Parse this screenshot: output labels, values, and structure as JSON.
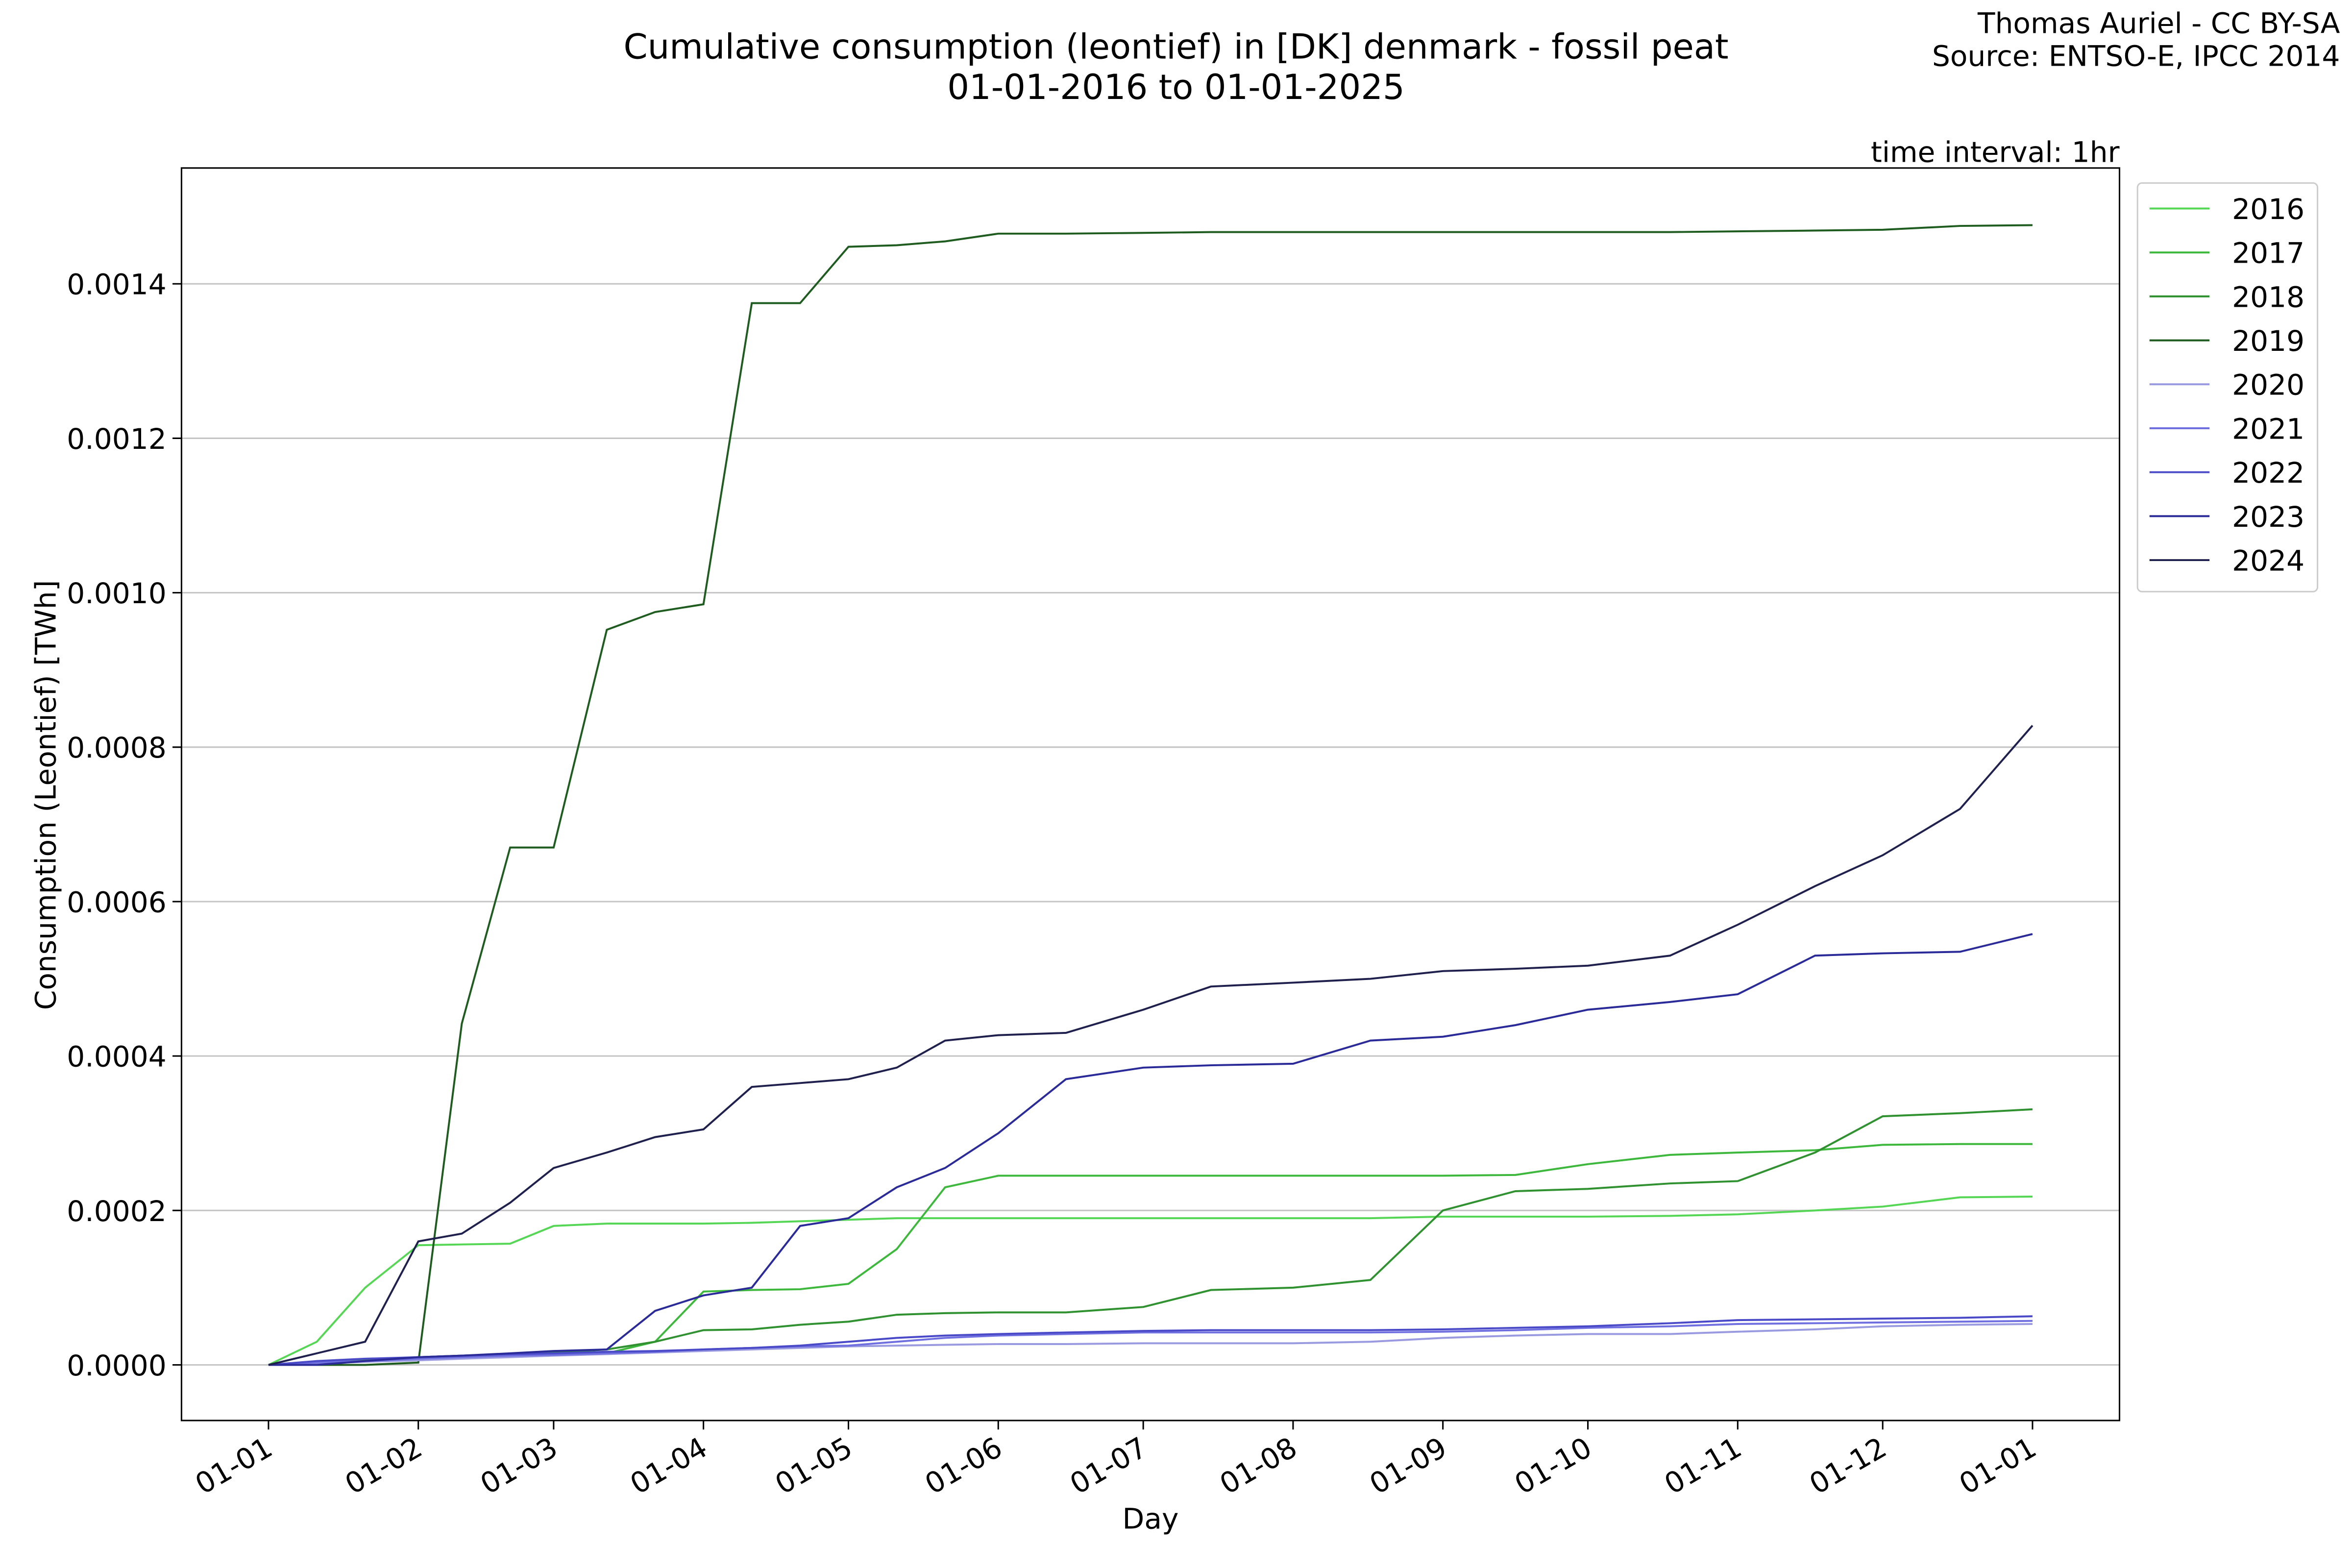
{
  "chart_data": {
    "type": "line",
    "title": "Cumulative consumption (leontief) in [DK] denmark - fossil peat",
    "subtitle": "01-01-2016 to 01-01-2025",
    "credits": [
      "Thomas Auriel - CC BY-SA",
      "Source: ENTSO-E, IPCC 2014"
    ],
    "annotation": "time interval: 1hr",
    "x_label": "Day",
    "y_label": "Consumption (Leontief) [TWh]",
    "grid": "y",
    "legend": "outside right",
    "xlim": [
      -18,
      383
    ],
    "ylim": [
      -7.2e-05,
      0.00155
    ],
    "xticks": [
      {
        "value": 0,
        "label": "01-01"
      },
      {
        "value": 31,
        "label": "01-02"
      },
      {
        "value": 59,
        "label": "01-03"
      },
      {
        "value": 90,
        "label": "01-04"
      },
      {
        "value": 120,
        "label": "01-05"
      },
      {
        "value": 151,
        "label": "01-06"
      },
      {
        "value": 181,
        "label": "01-07"
      },
      {
        "value": 212,
        "label": "01-08"
      },
      {
        "value": 243,
        "label": "01-09"
      },
      {
        "value": 273,
        "label": "01-10"
      },
      {
        "value": 304,
        "label": "01-11"
      },
      {
        "value": 334,
        "label": "01-12"
      },
      {
        "value": 365,
        "label": "01-01"
      }
    ],
    "yticks": [
      {
        "value": 0,
        "label": "0.0000"
      },
      {
        "value": 0.0002,
        "label": "0.0002"
      },
      {
        "value": 0.0004,
        "label": "0.0004"
      },
      {
        "value": 0.0006,
        "label": "0.0006"
      },
      {
        "value": 0.0008,
        "label": "0.0008"
      },
      {
        "value": 0.001,
        "label": "0.0010"
      },
      {
        "value": 0.0012,
        "label": "0.0012"
      },
      {
        "value": 0.0014,
        "label": "0.0014"
      }
    ],
    "x": [
      0,
      10,
      20,
      31,
      40,
      50,
      59,
      70,
      80,
      90,
      100,
      110,
      120,
      130,
      140,
      151,
      165,
      181,
      195,
      212,
      228,
      243,
      258,
      273,
      290,
      304,
      320,
      334,
      350,
      365
    ],
    "series": [
      {
        "name": "2016",
        "color": "#55d655",
        "values": [
          0,
          3e-05,
          0.0001,
          0.000155,
          0.000156,
          0.000157,
          0.00018,
          0.000183,
          0.000183,
          0.000183,
          0.000184,
          0.000186,
          0.000188,
          0.00019,
          0.00019,
          0.00019,
          0.00019,
          0.00019,
          0.00019,
          0.00019,
          0.00019,
          0.000192,
          0.000192,
          0.000192,
          0.000193,
          0.000195,
          0.0002,
          0.000205,
          0.000217,
          0.000218
        ]
      },
      {
        "name": "2017",
        "color": "#3db83d",
        "values": [
          0,
          2e-06,
          5e-06,
          8e-06,
          1e-05,
          1.2e-05,
          1.3e-05,
          1.5e-05,
          3e-05,
          9.5e-05,
          9.7e-05,
          9.8e-05,
          0.000105,
          0.00015,
          0.00023,
          0.000245,
          0.000245,
          0.000245,
          0.000245,
          0.000245,
          0.000245,
          0.000245,
          0.000246,
          0.00026,
          0.000272,
          0.000275,
          0.000278,
          0.000285,
          0.000286,
          0.000286
        ]
      },
      {
        "name": "2018",
        "color": "#2f912f",
        "values": [
          0,
          3e-06,
          6e-06,
          1e-05,
          1.2e-05,
          1.4e-05,
          1.6e-05,
          2e-05,
          3e-05,
          4.5e-05,
          4.6e-05,
          5.2e-05,
          5.6e-05,
          6.5e-05,
          6.7e-05,
          6.8e-05,
          6.8e-05,
          7.5e-05,
          9.7e-05,
          0.0001,
          0.00011,
          0.0002,
          0.000225,
          0.000228,
          0.000235,
          0.000238,
          0.000275,
          0.000322,
          0.000326,
          0.000331
        ]
      },
      {
        "name": "2019",
        "color": "#1f5c1f",
        "values": [
          0,
          0,
          0,
          3e-06,
          0.000442,
          0.00067,
          0.00067,
          0.000952,
          0.000975,
          0.000985,
          0.001375,
          0.001375,
          0.001448,
          0.00145,
          0.001455,
          0.001465,
          0.001465,
          0.001466,
          0.001467,
          0.001467,
          0.001467,
          0.001467,
          0.001467,
          0.001467,
          0.001467,
          0.001468,
          0.001469,
          0.00147,
          0.001475,
          0.001476
        ]
      },
      {
        "name": "2020",
        "color": "#9a9ae0",
        "values": [
          0,
          2e-06,
          4e-06,
          6e-06,
          8e-06,
          1e-05,
          1.2e-05,
          1.4e-05,
          1.6e-05,
          1.8e-05,
          2e-05,
          2.2e-05,
          2.4e-05,
          2.5e-05,
          2.6e-05,
          2.7e-05,
          2.7e-05,
          2.8e-05,
          2.8e-05,
          2.8e-05,
          3e-05,
          3.5e-05,
          3.8e-05,
          4e-05,
          4e-05,
          4.3e-05,
          4.6e-05,
          5e-05,
          5.2e-05,
          5.3e-05
        ]
      },
      {
        "name": "2021",
        "color": "#6f6fe0",
        "values": [
          0,
          3e-06,
          5e-06,
          8e-06,
          1e-05,
          1.2e-05,
          1.3e-05,
          1.5e-05,
          1.7e-05,
          2e-05,
          2.2e-05,
          2.4e-05,
          2.5e-05,
          3e-05,
          3.5e-05,
          3.8e-05,
          4e-05,
          4.2e-05,
          4.2e-05,
          4.2e-05,
          4.2e-05,
          4.3e-05,
          4.5e-05,
          4.8e-05,
          5e-05,
          5.3e-05,
          5.4e-05,
          5.5e-05,
          5.6e-05,
          5.7e-05
        ]
      },
      {
        "name": "2022",
        "color": "#4a4ac8",
        "values": [
          0,
          5e-06,
          8e-06,
          1e-05,
          1.2e-05,
          1.4e-05,
          1.5e-05,
          1.7e-05,
          1.8e-05,
          2e-05,
          2.2e-05,
          2.5e-05,
          3e-05,
          3.5e-05,
          3.8e-05,
          4e-05,
          4.2e-05,
          4.4e-05,
          4.5e-05,
          4.5e-05,
          4.5e-05,
          4.6e-05,
          4.8e-05,
          5e-05,
          5.4e-05,
          5.8e-05,
          5.9e-05,
          6e-05,
          6.1e-05,
          6.3e-05
        ]
      },
      {
        "name": "2023",
        "color": "#2a2a98",
        "values": [
          0,
          0,
          5e-06,
          1e-05,
          1.2e-05,
          1.5e-05,
          1.8e-05,
          2e-05,
          7e-05,
          9e-05,
          0.0001,
          0.00018,
          0.00019,
          0.00023,
          0.000255,
          0.0003,
          0.00037,
          0.000385,
          0.000388,
          0.00039,
          0.00042,
          0.000425,
          0.00044,
          0.00046,
          0.00047,
          0.00048,
          0.00053,
          0.000533,
          0.000535,
          0.000558
        ]
      },
      {
        "name": "2024",
        "color": "#20204e",
        "values": [
          0,
          1.5e-05,
          3e-05,
          0.00016,
          0.00017,
          0.00021,
          0.000255,
          0.000275,
          0.000295,
          0.000305,
          0.00036,
          0.000365,
          0.00037,
          0.000385,
          0.00042,
          0.000427,
          0.00043,
          0.00046,
          0.00049,
          0.000495,
          0.0005,
          0.00051,
          0.000513,
          0.000517,
          0.00053,
          0.00057,
          0.00062,
          0.00066,
          0.00072,
          0.000828
        ]
      }
    ]
  }
}
